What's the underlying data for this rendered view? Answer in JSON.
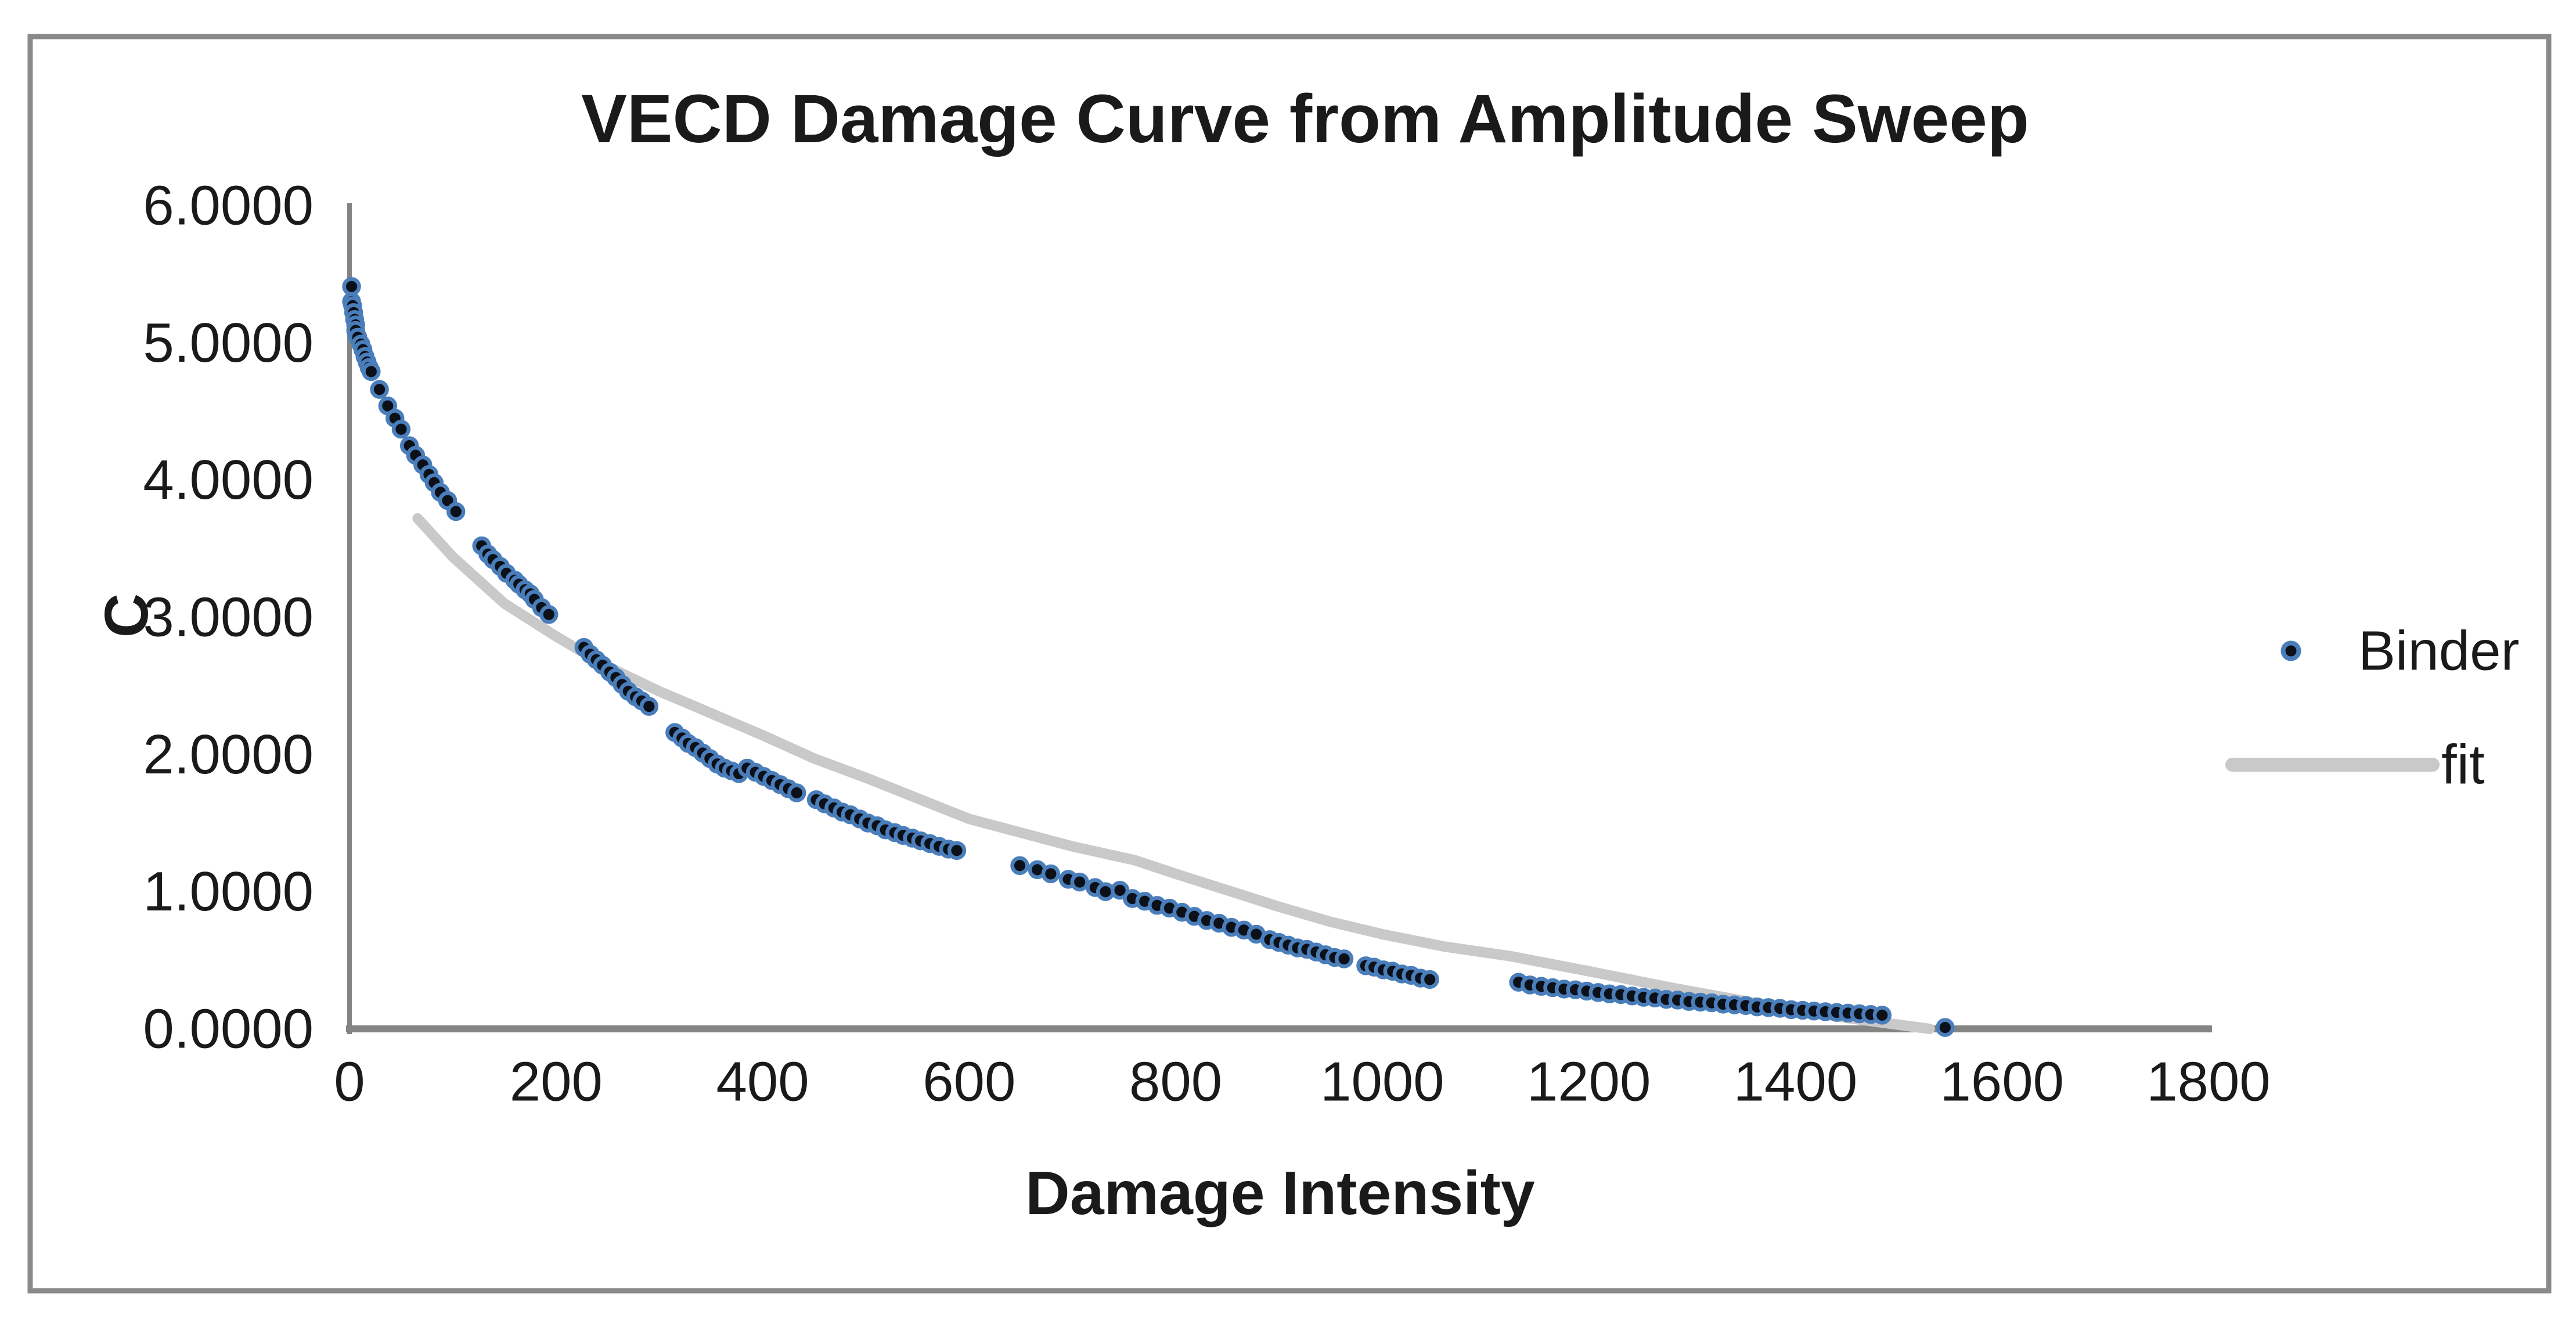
{
  "chart_data": {
    "type": "scatter",
    "title": "VECD Damage Curve from Amplitude Sweep",
    "xlabel": "Damage Intensity",
    "ylabel": "C",
    "xlim": [
      0,
      1800
    ],
    "ylim": [
      0,
      6
    ],
    "grid": false,
    "legend_position": "right",
    "x_ticks": [
      0,
      200,
      400,
      600,
      800,
      1000,
      1200,
      1400,
      1600,
      1800
    ],
    "y_ticks": [
      {
        "value": 6,
        "label": "6.0000"
      },
      {
        "value": 5,
        "label": "5.0000"
      },
      {
        "value": 4,
        "label": "4.0000"
      },
      {
        "value": 3,
        "label": "3.0000"
      },
      {
        "value": 2,
        "label": "2.0000"
      },
      {
        "value": 1,
        "label": "1.0000"
      },
      {
        "value": 0,
        "label": "0.0000"
      }
    ],
    "colors": {
      "marker_ring": "#4a7ebb",
      "marker_core": "#0c1018",
      "fit_line": "#c9c9c9",
      "axis_line": "#848484",
      "border": "#8a8a8a",
      "text": "#1a1a1a"
    },
    "series": [
      {
        "name": "Binder",
        "type": "scatter",
        "points": [
          [
            2,
            5.41
          ],
          [
            2,
            5.3
          ],
          [
            3,
            5.27
          ],
          [
            4,
            5.22
          ],
          [
            5,
            5.17
          ],
          [
            6,
            5.13
          ],
          [
            6,
            5.09
          ],
          [
            8,
            5.04
          ],
          [
            11,
            4.99
          ],
          [
            13,
            4.95
          ],
          [
            15,
            4.9
          ],
          [
            17,
            4.86
          ],
          [
            19,
            4.82
          ],
          [
            21,
            4.79
          ],
          [
            29,
            4.66
          ],
          [
            37,
            4.54
          ],
          [
            44,
            4.45
          ],
          [
            50,
            4.37
          ],
          [
            58,
            4.25
          ],
          [
            64,
            4.18
          ],
          [
            71,
            4.11
          ],
          [
            77,
            4.04
          ],
          [
            82,
            3.98
          ],
          [
            88,
            3.91
          ],
          [
            95,
            3.85
          ],
          [
            103,
            3.77
          ],
          [
            128,
            3.52
          ],
          [
            134,
            3.46
          ],
          [
            139,
            3.42
          ],
          [
            146,
            3.37
          ],
          [
            152,
            3.32
          ],
          [
            160,
            3.27
          ],
          [
            164,
            3.24
          ],
          [
            170,
            3.2
          ],
          [
            175,
            3.17
          ],
          [
            179,
            3.13
          ],
          [
            186,
            3.07
          ],
          [
            193,
            3.02
          ],
          [
            227,
            2.78
          ],
          [
            233,
            2.73
          ],
          [
            239,
            2.69
          ],
          [
            245,
            2.65
          ],
          [
            252,
            2.6
          ],
          [
            258,
            2.56
          ],
          [
            264,
            2.51
          ],
          [
            270,
            2.46
          ],
          [
            277,
            2.42
          ],
          [
            283,
            2.39
          ],
          [
            290,
            2.35
          ],
          [
            315,
            2.16
          ],
          [
            322,
            2.12
          ],
          [
            328,
            2.08
          ],
          [
            335,
            2.05
          ],
          [
            342,
            2.01
          ],
          [
            349,
            1.97
          ],
          [
            356,
            1.93
          ],
          [
            363,
            1.9
          ],
          [
            370,
            1.88
          ],
          [
            377,
            1.86
          ],
          [
            385,
            1.9
          ],
          [
            393,
            1.87
          ],
          [
            401,
            1.84
          ],
          [
            409,
            1.81
          ],
          [
            417,
            1.78
          ],
          [
            425,
            1.75
          ],
          [
            433,
            1.72
          ],
          [
            452,
            1.67
          ],
          [
            460,
            1.64
          ],
          [
            469,
            1.61
          ],
          [
            477,
            1.58
          ],
          [
            485,
            1.56
          ],
          [
            494,
            1.53
          ],
          [
            502,
            1.5
          ],
          [
            511,
            1.48
          ],
          [
            519,
            1.45
          ],
          [
            528,
            1.43
          ],
          [
            536,
            1.41
          ],
          [
            545,
            1.39
          ],
          [
            553,
            1.37
          ],
          [
            562,
            1.35
          ],
          [
            571,
            1.33
          ],
          [
            580,
            1.31
          ],
          [
            588,
            1.3
          ],
          [
            649,
            1.19
          ],
          [
            666,
            1.16
          ],
          [
            679,
            1.13
          ],
          [
            696,
            1.09
          ],
          [
            707,
            1.07
          ],
          [
            722,
            1.03
          ],
          [
            732,
            1.0
          ],
          [
            746,
            1.01
          ],
          [
            758,
            0.95
          ],
          [
            770,
            0.93
          ],
          [
            782,
            0.9
          ],
          [
            794,
            0.88
          ],
          [
            806,
            0.85
          ],
          [
            818,
            0.82
          ],
          [
            830,
            0.79
          ],
          [
            842,
            0.77
          ],
          [
            854,
            0.74
          ],
          [
            866,
            0.72
          ],
          [
            878,
            0.69
          ],
          [
            891,
            0.65
          ],
          [
            900,
            0.63
          ],
          [
            909,
            0.61
          ],
          [
            918,
            0.59
          ],
          [
            927,
            0.58
          ],
          [
            936,
            0.56
          ],
          [
            945,
            0.54
          ],
          [
            954,
            0.52
          ],
          [
            963,
            0.51
          ],
          [
            984,
            0.46
          ],
          [
            992,
            0.45
          ],
          [
            1001,
            0.43
          ],
          [
            1010,
            0.42
          ],
          [
            1019,
            0.4
          ],
          [
            1028,
            0.39
          ],
          [
            1037,
            0.37
          ],
          [
            1046,
            0.36
          ],
          [
            1132,
            0.34
          ],
          [
            1143,
            0.32
          ],
          [
            1154,
            0.31
          ],
          [
            1165,
            0.3
          ],
          [
            1176,
            0.29
          ],
          [
            1187,
            0.285
          ],
          [
            1198,
            0.275
          ],
          [
            1209,
            0.265
          ],
          [
            1220,
            0.255
          ],
          [
            1231,
            0.25
          ],
          [
            1242,
            0.24
          ],
          [
            1253,
            0.23
          ],
          [
            1264,
            0.225
          ],
          [
            1275,
            0.215
          ],
          [
            1286,
            0.21
          ],
          [
            1297,
            0.2
          ],
          [
            1308,
            0.195
          ],
          [
            1319,
            0.19
          ],
          [
            1330,
            0.18
          ],
          [
            1341,
            0.175
          ],
          [
            1352,
            0.17
          ],
          [
            1363,
            0.16
          ],
          [
            1374,
            0.155
          ],
          [
            1385,
            0.15
          ],
          [
            1396,
            0.14
          ],
          [
            1407,
            0.135
          ],
          [
            1418,
            0.13
          ],
          [
            1429,
            0.125
          ],
          [
            1440,
            0.12
          ],
          [
            1451,
            0.115
          ],
          [
            1462,
            0.11
          ],
          [
            1473,
            0.105
          ],
          [
            1484,
            0.1
          ],
          [
            1545,
            0.01
          ]
        ]
      },
      {
        "name": "fit",
        "type": "line",
        "points": [
          [
            66,
            3.72
          ],
          [
            100,
            3.44
          ],
          [
            150,
            3.1
          ],
          [
            200,
            2.86
          ],
          [
            250,
            2.64
          ],
          [
            300,
            2.46
          ],
          [
            350,
            2.3
          ],
          [
            400,
            2.14
          ],
          [
            450,
            1.97
          ],
          [
            500,
            1.83
          ],
          [
            550,
            1.68
          ],
          [
            600,
            1.53
          ],
          [
            650,
            1.43
          ],
          [
            700,
            1.33
          ],
          [
            760,
            1.23
          ],
          [
            800,
            1.13
          ],
          [
            850,
            1.01
          ],
          [
            900,
            0.89
          ],
          [
            950,
            0.78
          ],
          [
            1000,
            0.69
          ],
          [
            1060,
            0.6
          ],
          [
            1124,
            0.53
          ],
          [
            1200,
            0.42
          ],
          [
            1280,
            0.3
          ],
          [
            1368,
            0.18
          ],
          [
            1450,
            0.08
          ],
          [
            1530,
            0.0
          ]
        ]
      }
    ]
  }
}
